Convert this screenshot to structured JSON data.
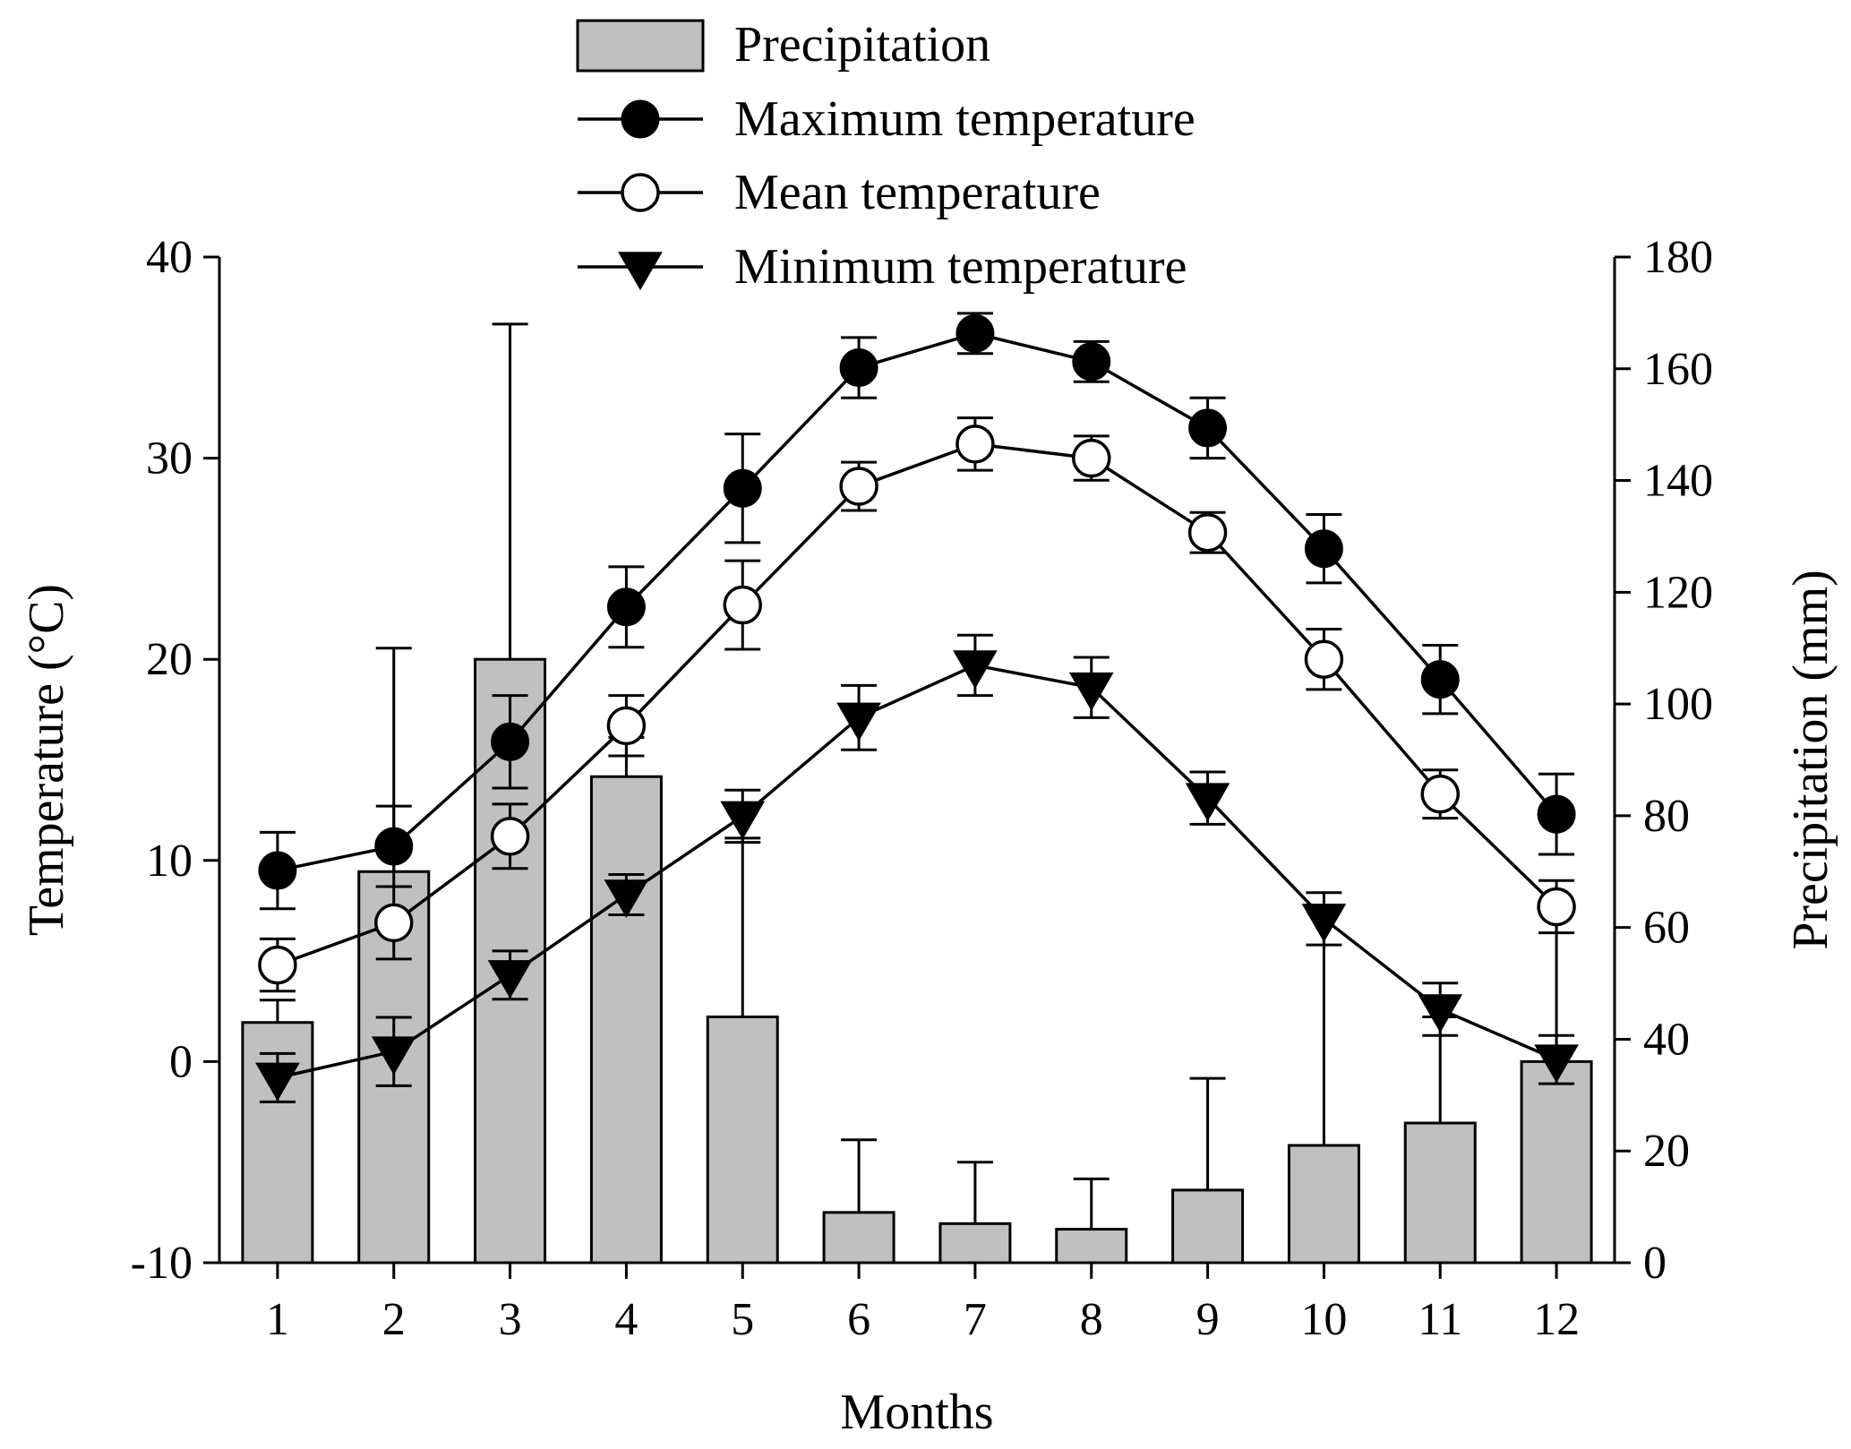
{
  "chart_data": {
    "type": "bar+line",
    "xlabel": "Months",
    "ylabel_left": "Temperature (°C)",
    "ylabel_right": "Precipitation (mm)",
    "categories": [
      "1",
      "2",
      "3",
      "4",
      "5",
      "6",
      "7",
      "8",
      "9",
      "10",
      "11",
      "12"
    ],
    "left_axis": {
      "range": [
        -10,
        40
      ],
      "ticks": [
        "-10",
        "0",
        "10",
        "20",
        "30",
        "40"
      ]
    },
    "right_axis": {
      "range": [
        0,
        180
      ],
      "ticks": [
        "0",
        "20",
        "40",
        "60",
        "80",
        "100",
        "120",
        "140",
        "160",
        "180"
      ]
    },
    "bar_series": {
      "name": "Precipitation",
      "axis": "right",
      "color": "#c0c0c0",
      "values": [
        43,
        70,
        108,
        87,
        44,
        9,
        7,
        6,
        13,
        21,
        25,
        36
      ],
      "errors": [
        4,
        40,
        60,
        7,
        32,
        13,
        11,
        9,
        20,
        43,
        19,
        27
      ]
    },
    "line_series": [
      {
        "name": "Maximum temperature",
        "axis": "left",
        "marker": "filled-circle",
        "values": [
          9.5,
          10.7,
          15.9,
          22.6,
          28.5,
          34.5,
          36.2,
          34.8,
          31.5,
          25.5,
          19.0,
          12.3
        ],
        "errors": [
          1.9,
          2.0,
          2.3,
          2.0,
          2.7,
          1.5,
          1.0,
          1.0,
          1.5,
          1.7,
          1.7,
          2.0
        ]
      },
      {
        "name": "Mean temperature",
        "axis": "left",
        "marker": "open-circle",
        "values": [
          4.8,
          6.9,
          11.2,
          16.7,
          22.7,
          28.6,
          30.7,
          30.0,
          26.3,
          20.0,
          13.3,
          7.7
        ],
        "errors": [
          1.3,
          1.8,
          1.6,
          1.5,
          2.2,
          1.2,
          1.3,
          1.1,
          1.0,
          1.5,
          1.2,
          1.3
        ]
      },
      {
        "name": "Minimum temperature",
        "axis": "left",
        "marker": "filled-triangle-down",
        "values": [
          -0.8,
          0.5,
          4.3,
          8.3,
          12.2,
          17.1,
          19.7,
          18.6,
          13.1,
          7.1,
          2.6,
          0.1
        ],
        "errors": [
          1.2,
          1.7,
          1.2,
          1.0,
          1.3,
          1.6,
          1.5,
          1.5,
          1.3,
          1.3,
          1.3,
          1.2
        ]
      }
    ]
  }
}
